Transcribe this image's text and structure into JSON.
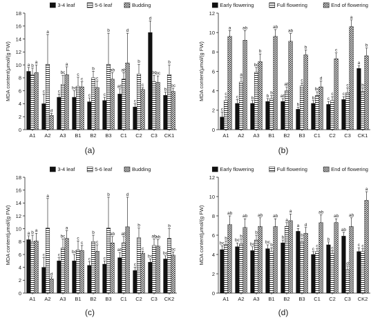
{
  "figure": {
    "captions": [
      "(a)",
      "(b)",
      "(c)",
      "(d)"
    ]
  },
  "patterns": {
    "s1": "solid-black",
    "s2": "horizontal-lines",
    "s3": "dotted-hatch"
  },
  "chart_data": [
    {
      "type": "bar",
      "panel": "(a)",
      "ylabel": "MDA content(μmol/(g FW)",
      "ylim": [
        0,
        18
      ],
      "yticks": [
        0,
        2,
        4,
        6,
        8,
        10,
        12,
        14,
        16,
        18
      ],
      "legend_position": "top",
      "categories": [
        "A1",
        "A2",
        "A3",
        "B1",
        "B2",
        "B3",
        "C1",
        "C2",
        "C3",
        "CK1"
      ],
      "series": [
        {
          "name": "3-4 leaf",
          "values": [
            9.0,
            4.0,
            5.0,
            5.0,
            4.3,
            4.5,
            5.5,
            3.5,
            15.0,
            5.3
          ],
          "errors": [
            0.6,
            1.5,
            0.5,
            1.0,
            0.6,
            0.5,
            0.8,
            0.5,
            1.8,
            0.5
          ],
          "labels": [
            "a",
            "c",
            "c",
            "bc",
            "c",
            "c",
            "ab",
            "c",
            "d",
            "b"
          ]
        },
        {
          "name": "5-6 leaf",
          "values": [
            8.5,
            10.1,
            7.0,
            6.7,
            8.0,
            10.1,
            7.8,
            8.6,
            7.4,
            8.5
          ],
          "errors": [
            1.0,
            4.6,
            1.4,
            1.4,
            1.0,
            4.8,
            1.0,
            1.5,
            1.0,
            1.5
          ],
          "labels": [
            "b",
            "a",
            "bc",
            "c",
            "b",
            "b",
            "ab",
            "b",
            "bc",
            "b"
          ]
        },
        {
          "name": "Budding",
          "values": [
            8.8,
            2.2,
            8.5,
            6.6,
            6.5,
            7.8,
            10.3,
            6.2,
            7.3,
            5.9
          ],
          "errors": [
            1.2,
            0.3,
            1.2,
            0.8,
            1.0,
            1.0,
            4.6,
            0.3,
            1.0,
            0.5
          ],
          "labels": [
            "a",
            "d",
            "a",
            "c",
            "c",
            "ab",
            "d",
            "c",
            "bc",
            "bc"
          ]
        }
      ]
    },
    {
      "type": "bar",
      "panel": "(b)",
      "ylabel": "MDA content(μmol/(g FW)",
      "ylim": [
        0,
        12
      ],
      "yticks": [
        0,
        2,
        4,
        6,
        8,
        10,
        12
      ],
      "legend_position": "top",
      "categories": [
        "A1",
        "A2",
        "A3",
        "B1",
        "B2",
        "B3",
        "C1",
        "C2",
        "C3",
        "CK1"
      ],
      "series": [
        {
          "name": "Early flowering",
          "values": [
            1.3,
            2.7,
            2.7,
            2.9,
            2.9,
            2.1,
            2.7,
            2.6,
            3.1,
            6.3
          ],
          "errors": [
            0.5,
            0.4,
            0.3,
            0.3,
            0.3,
            0.2,
            0.3,
            0.3,
            0.3,
            0.3
          ],
          "labels": [
            "c",
            "c",
            "b",
            "b",
            "ab",
            "b",
            "b",
            "c",
            "c",
            "a"
          ]
        },
        {
          "name": "Full flowering",
          "values": [
            3.0,
            4.9,
            5.9,
            3.2,
            4.0,
            4.5,
            3.5,
            3.0,
            3.8,
            3.9
          ],
          "errors": [
            0.4,
            0.5,
            0.5,
            0.3,
            0.4,
            0.3,
            0.4,
            0.4,
            0.5,
            0.4
          ],
          "labels": [
            "c",
            "a",
            "bc",
            "b",
            "ab",
            "c",
            "bc",
            "c",
            "c",
            "b"
          ]
        },
        {
          "name": "End of flowering",
          "values": [
            9.6,
            9.2,
            7.0,
            9.6,
            9.1,
            7.7,
            4.4,
            7.3,
            10.6,
            7.6
          ],
          "errors": [
            0.6,
            1.0,
            0.8,
            0.7,
            0.8,
            0.5,
            0.6,
            0.6,
            0.7,
            0.8
          ],
          "labels": [
            "a",
            "ab",
            "b",
            "ab",
            "ab",
            "b",
            "d",
            "c",
            "a",
            "b"
          ]
        }
      ]
    },
    {
      "type": "bar",
      "panel": "(c)",
      "ylabel": "MDA content(μmol/(g FW)",
      "ylim": [
        0,
        18
      ],
      "yticks": [
        0,
        2,
        4,
        6,
        8,
        10,
        12,
        14,
        16,
        18
      ],
      "legend_position": "top",
      "categories": [
        "A1",
        "A2",
        "A3",
        "B1",
        "B2",
        "B3",
        "C1",
        "C2",
        "C3",
        "CK2"
      ],
      "series": [
        {
          "name": "3-4 leaf",
          "values": [
            8.3,
            4.0,
            5.0,
            5.0,
            4.3,
            4.5,
            5.5,
            3.5,
            4.8,
            5.3
          ],
          "errors": [
            0.6,
            1.5,
            0.5,
            1.0,
            0.6,
            0.5,
            0.8,
            0.5,
            0.5,
            0.5
          ],
          "labels": [
            "a",
            "c",
            "c",
            "bc",
            "c",
            "c",
            "ab",
            "c",
            "bc",
            "bc"
          ]
        },
        {
          "name": "5-6 leaf",
          "values": [
            8.0,
            10.1,
            7.0,
            6.7,
            8.0,
            10.1,
            7.8,
            8.6,
            7.4,
            8.5
          ],
          "errors": [
            1.0,
            4.6,
            1.4,
            1.4,
            1.0,
            4.8,
            1.0,
            1.5,
            1.0,
            1.5
          ],
          "labels": [
            "b",
            "a",
            "bc",
            "c",
            "b",
            "b",
            "ab",
            "b",
            "ab",
            "b"
          ]
        },
        {
          "name": "Budding",
          "values": [
            8.1,
            2.2,
            8.5,
            6.6,
            6.5,
            7.8,
            10.3,
            6.2,
            7.3,
            5.9
          ],
          "errors": [
            1.2,
            0.3,
            1.2,
            0.8,
            1.0,
            1.0,
            4.6,
            0.3,
            1.0,
            0.5
          ],
          "labels": [
            "a",
            "d",
            "a",
            "c",
            "c",
            "ab",
            "d",
            "c",
            "ab",
            "bc"
          ]
        }
      ]
    },
    {
      "type": "bar",
      "panel": "(d)",
      "ylabel": "MDA content(μmol/(g FW)",
      "ylim": [
        0,
        12
      ],
      "yticks": [
        0,
        2,
        4,
        6,
        8,
        10,
        12
      ],
      "legend_position": "top",
      "categories": [
        "A1",
        "A2",
        "A3",
        "B1",
        "B2",
        "B3",
        "C1",
        "C2",
        "C3",
        "CK2"
      ],
      "series": [
        {
          "name": "Early flowering",
          "values": [
            4.5,
            4.8,
            4.4,
            4.6,
            5.2,
            6.4,
            4.0,
            5.0,
            5.9,
            4.3
          ],
          "errors": [
            0.4,
            0.4,
            0.4,
            0.4,
            0.3,
            0.3,
            0.3,
            0.3,
            0.4,
            0.4
          ],
          "labels": [
            "bc",
            "bc",
            "bc",
            "bc",
            "b",
            "a",
            "c",
            "b",
            "ab",
            "c"
          ]
        },
        {
          "name": "Full flowering",
          "values": [
            5.0,
            5.1,
            5.5,
            4.3,
            6.9,
            5.3,
            4.3,
            4.1,
            2.4,
            4.3
          ],
          "errors": [
            0.4,
            0.5,
            0.5,
            0.4,
            0.4,
            0.4,
            0.3,
            0.3,
            0.4,
            0.3
          ],
          "labels": [
            "b",
            "b",
            "b",
            "b",
            "a",
            "b",
            "c",
            "c",
            "d",
            "c"
          ]
        },
        {
          "name": "End of flowering",
          "values": [
            7.1,
            6.8,
            6.9,
            6.9,
            7.5,
            6.2,
            7.3,
            7.3,
            6.9,
            9.6
          ],
          "errors": [
            0.9,
            0.9,
            0.9,
            0.8,
            0.7,
            0.6,
            0.8,
            0.4,
            0.9,
            0.9
          ],
          "labels": [
            "ab",
            "ab",
            "ab",
            "ab",
            "a",
            "d",
            "ab",
            "ab",
            "ab",
            "a"
          ]
        }
      ]
    }
  ]
}
